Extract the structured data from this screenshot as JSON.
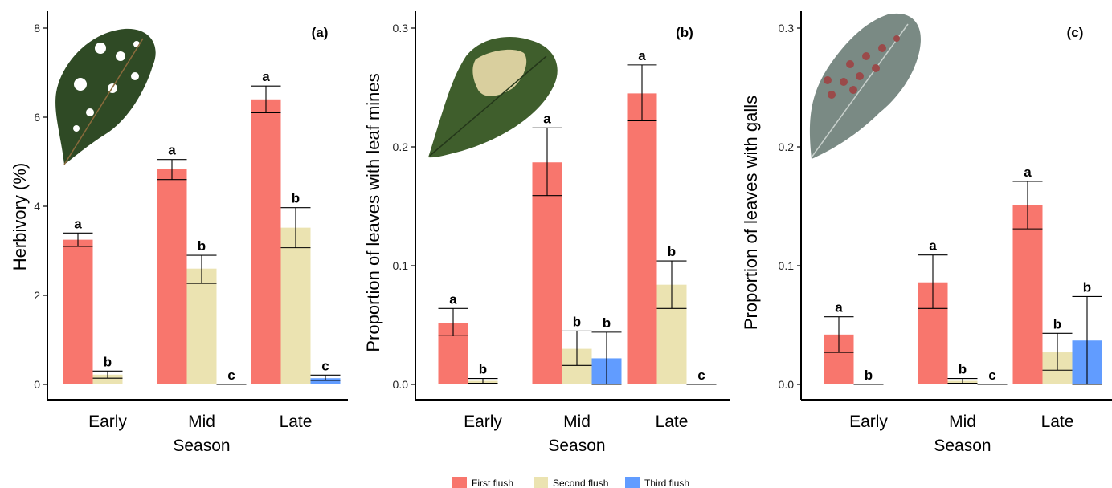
{
  "chart_data": [
    {
      "type": "bar",
      "panel_label": "(a)",
      "ylabel": "Herbivory (%)",
      "xlabel": "Season",
      "ylim": [
        0,
        8
      ],
      "yticks": [
        "0",
        "2",
        "4",
        "6",
        "8"
      ],
      "ytick_values": [
        0,
        2,
        4,
        6,
        8
      ],
      "categories": [
        "Early",
        "Mid",
        "Late"
      ],
      "series": [
        {
          "name": "First flush",
          "values": [
            3.25,
            4.83,
            6.4
          ],
          "err_low": [
            3.1,
            4.6,
            6.1
          ],
          "err_high": [
            3.4,
            5.05,
            6.7
          ],
          "letters": [
            "a",
            "a",
            "a"
          ]
        },
        {
          "name": "Second flush",
          "values": [
            0.22,
            2.6,
            3.52
          ],
          "err_low": [
            0.14,
            2.27,
            3.07
          ],
          "err_high": [
            0.3,
            2.9,
            3.97
          ],
          "letters": [
            "b",
            "b",
            "b"
          ]
        },
        {
          "name": "Third flush",
          "values": [
            null,
            0.0,
            0.14
          ],
          "err_low": [
            null,
            0.0,
            0.09
          ],
          "err_high": [
            null,
            0.0,
            0.21
          ],
          "letters": [
            "",
            "c",
            "c"
          ]
        }
      ],
      "image": "leaf-with-herbivore-holes"
    },
    {
      "type": "bar",
      "panel_label": "(b)",
      "ylabel": "Proportion of leaves with leaf mines",
      "xlabel": "Season",
      "ylim": [
        0,
        0.3
      ],
      "yticks": [
        "0.0",
        "0.1",
        "0.2",
        "0.3"
      ],
      "ytick_values": [
        0,
        0.1,
        0.2,
        0.3
      ],
      "categories": [
        "Early",
        "Mid",
        "Late"
      ],
      "series": [
        {
          "name": "First flush",
          "values": [
            0.052,
            0.187,
            0.245
          ],
          "err_low": [
            0.041,
            0.159,
            0.222
          ],
          "err_high": [
            0.064,
            0.216,
            0.269
          ],
          "letters": [
            "a",
            "a",
            "a"
          ]
        },
        {
          "name": "Second flush",
          "values": [
            0.003,
            0.03,
            0.084
          ],
          "err_low": [
            0.001,
            0.016,
            0.064
          ],
          "err_high": [
            0.005,
            0.045,
            0.104
          ],
          "letters": [
            "b",
            "b",
            "b"
          ]
        },
        {
          "name": "Third flush",
          "values": [
            null,
            0.022,
            0.0
          ],
          "err_low": [
            null,
            0.0,
            0.0
          ],
          "err_high": [
            null,
            0.044,
            0.0
          ],
          "letters": [
            "",
            "b",
            "c"
          ]
        }
      ],
      "image": "leaf-with-leaf-mine"
    },
    {
      "type": "bar",
      "panel_label": "(c)",
      "ylabel": "Proportion of leaves with galls",
      "xlabel": "Season",
      "ylim": [
        0,
        0.3
      ],
      "yticks": [
        "0.0",
        "0.1",
        "0.2",
        "0.3"
      ],
      "ytick_values": [
        0,
        0.1,
        0.2,
        0.3
      ],
      "categories": [
        "Early",
        "Mid",
        "Late"
      ],
      "series": [
        {
          "name": "First flush",
          "values": [
            0.042,
            0.086,
            0.151
          ],
          "err_low": [
            0.027,
            0.064,
            0.131
          ],
          "err_high": [
            0.057,
            0.109,
            0.171
          ],
          "letters": [
            "a",
            "a",
            "a"
          ]
        },
        {
          "name": "Second flush",
          "values": [
            0.0,
            0.003,
            0.027
          ],
          "err_low": [
            0.0,
            0.001,
            0.012
          ],
          "err_high": [
            0.0,
            0.005,
            0.043
          ],
          "letters": [
            "b",
            "b",
            "b"
          ]
        },
        {
          "name": "Third flush",
          "values": [
            null,
            0.0,
            0.037
          ],
          "err_low": [
            null,
            0.0,
            0.0
          ],
          "err_high": [
            null,
            0.0,
            0.074
          ],
          "letters": [
            "",
            "c",
            "b"
          ]
        }
      ],
      "image": "oak-leaf-with-galls"
    }
  ],
  "legend": {
    "placement": "bottom-center",
    "items": [
      {
        "label": "First flush",
        "color": "#f8766d"
      },
      {
        "label": "Second flush",
        "color": "#ebe3b1"
      },
      {
        "label": "Third flush",
        "color": "#619cff"
      }
    ]
  },
  "colors": {
    "first_flush": "#f8766d",
    "second_flush": "#ebe3b1",
    "third_flush": "#619cff",
    "axis": "#000000"
  }
}
